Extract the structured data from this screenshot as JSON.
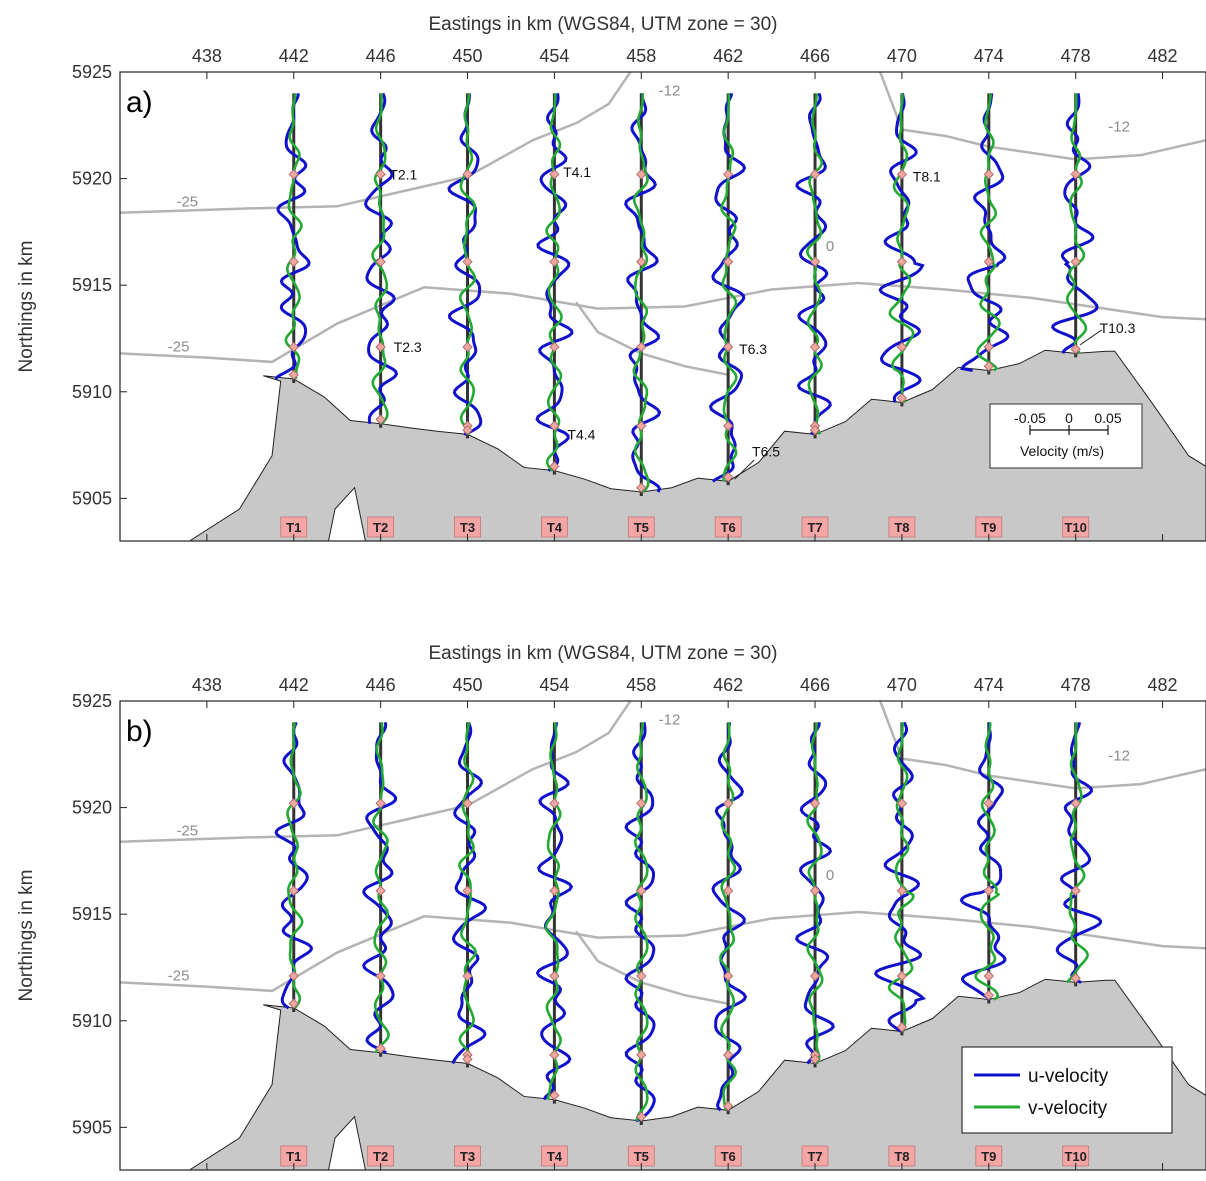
{
  "chart_data": [
    {
      "type": "line",
      "panel_label": "a)",
      "xlabel": "Eastings in km (WGS84, UTM zone = 30)",
      "ylabel": "Northings in km",
      "xlim": [
        434,
        484
      ],
      "ylim": [
        5903,
        5925
      ],
      "x_ticks": [
        "438",
        "442",
        "446",
        "450",
        "454",
        "458",
        "462",
        "466",
        "470",
        "474",
        "478",
        "482"
      ],
      "y_ticks": [
        "5905",
        "5910",
        "5915",
        "5920",
        "5925"
      ],
      "grid": false,
      "transects": [
        "T1",
        "T2",
        "T3",
        "T4",
        "T5",
        "T6",
        "T7",
        "T8",
        "T9",
        "T10"
      ],
      "transect_x": [
        442,
        446,
        450,
        454,
        458,
        462,
        466,
        470,
        474,
        478
      ],
      "coast_north": [
        5910.6,
        5908.5,
        5908.0,
        5906.3,
        5905.3,
        5905.8,
        5908.0,
        5909.5,
        5911.0,
        5911.8
      ],
      "contour_labels": [
        "-25",
        "-12",
        "-25",
        "-12",
        "0"
      ],
      "point_labels": [
        "T2.1",
        "T2.3",
        "T4.1",
        "T4.4",
        "T6.3",
        "T6.5",
        "T8.1",
        "T10.3"
      ],
      "scale_bar": {
        "ticks": [
          "-0.05",
          "0",
          "0.05"
        ],
        "label": "Velocity (m/s)"
      },
      "series": [
        {
          "name": "u-velocity"
        },
        {
          "name": "v-velocity"
        }
      ]
    },
    {
      "type": "line",
      "panel_label": "b)",
      "xlabel": "Eastings in km (WGS84, UTM zone = 30)",
      "ylabel": "Northings in km",
      "xlim": [
        434,
        484
      ],
      "ylim": [
        5903,
        5925
      ],
      "x_ticks": [
        "438",
        "442",
        "446",
        "450",
        "454",
        "458",
        "462",
        "466",
        "470",
        "474",
        "478",
        "482"
      ],
      "y_ticks": [
        "5905",
        "5910",
        "5915",
        "5920",
        "5925"
      ],
      "grid": false,
      "transects": [
        "T1",
        "T2",
        "T3",
        "T4",
        "T5",
        "T6",
        "T7",
        "T8",
        "T9",
        "T10"
      ],
      "transect_x": [
        442,
        446,
        450,
        454,
        458,
        462,
        466,
        470,
        474,
        478
      ],
      "coast_north": [
        5910.6,
        5908.5,
        5908.0,
        5906.3,
        5905.3,
        5905.8,
        5908.0,
        5909.5,
        5911.0,
        5911.8
      ],
      "contour_labels": [
        "-25",
        "-12",
        "-25",
        "-12",
        "0"
      ],
      "legend": {
        "position": "bottom-right",
        "entries": [
          "u-velocity",
          "v-velocity"
        ]
      },
      "series": [
        {
          "name": "u-velocity"
        },
        {
          "name": "v-velocity"
        }
      ]
    }
  ],
  "colors": {
    "u_velocity": "#1111cc",
    "v_velocity": "#22aa33",
    "land": "#c8c8c8",
    "contour": "#b4b4b4",
    "transect_line": "#333333",
    "station_marker": "#f0a8a0",
    "transect_tag_bg": "#f4a6a6"
  },
  "icons": [
    "station-marker-diamond",
    "legend-line-swatch"
  ]
}
